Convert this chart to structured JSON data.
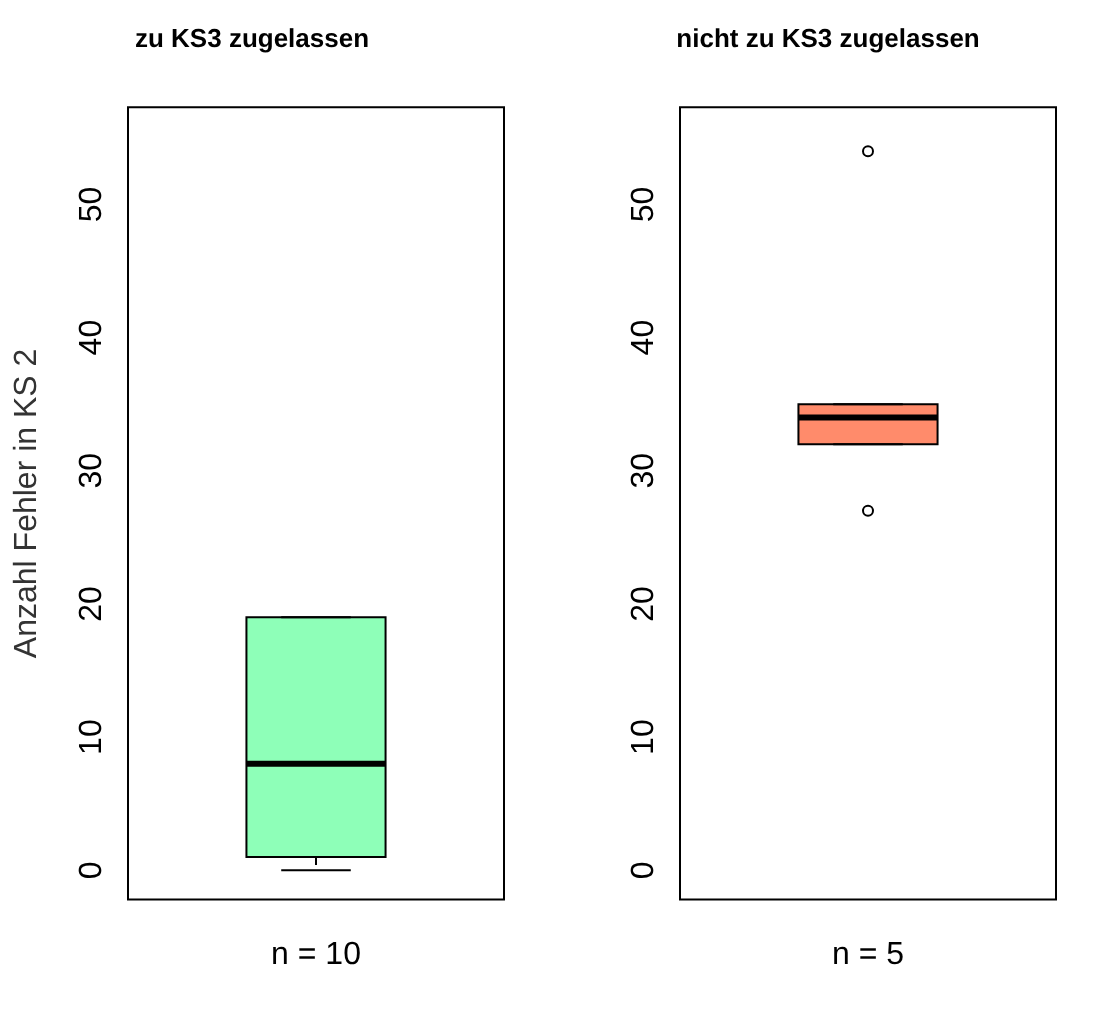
{
  "chart_data": [
    {
      "type": "box",
      "title": "zu KS3 zugelassen",
      "ylabel": "Anzahl Fehler in KS 2",
      "categories": [
        "n = 10"
      ],
      "color": "#8effb8",
      "boxes": [
        {
          "low": 0,
          "q1": 1,
          "median": 8,
          "q3": 19,
          "high": 19
        }
      ],
      "ylim": [
        -2.2,
        57.3
      ],
      "yticks": [
        0,
        10,
        20,
        30,
        40,
        50
      ]
    },
    {
      "type": "box",
      "title": "nicht zu KS3 zugelassen",
      "categories": [
        "n = 5"
      ],
      "color": "#ff8b6b",
      "boxes": [
        {
          "low": 32,
          "q1": 32,
          "median": 34,
          "q3": 35,
          "high": 35,
          "outliers": [
            27,
            54
          ]
        }
      ],
      "ylim": [
        -2.2,
        57.3
      ],
      "yticks": [
        0,
        10,
        20,
        30,
        40,
        50
      ]
    }
  ]
}
